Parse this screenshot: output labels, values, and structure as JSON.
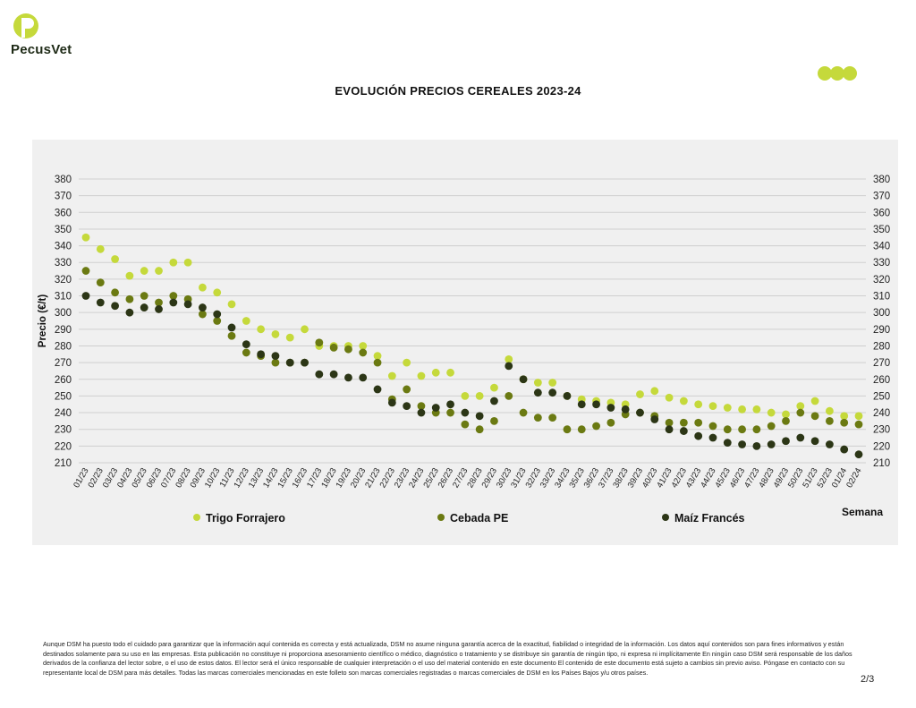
{
  "brand": {
    "name": "PecusVet",
    "accent": "#c5d93b",
    "dark": "#2c3616"
  },
  "title": "EVOLUCIÓN PRECIOS CEREALES 2023-24",
  "footer": {
    "disclaimer": "Aunque DSM ha puesto todo el cuidado para garantizar que la información aquí contenida es correcta y está actualizada, DSM no asume ninguna garantía acerca de la exactitud, fiabilidad o integridad de la información. Los datos aquí contenidos son para fines informativos y están destinados solamente para su uso en las empresas. Esta publicación no constituye ni proporciona asesoramiento científico o médico, diagnóstico o tratamiento y se distribuye sin garantía de ningún tipo, ni expresa ni implícitamente En ningún caso DSM será responsable de los daños derivados de la confianza del lector sobre, o el uso de estos datos. El lector será el único responsable de cualquier interpretación o el uso del material contenido en este documento El contenido de este documento está sujeto a cambios sin previo aviso. Póngase en contacto con su representante local de DSM para más detalles. Todas las marcas comerciales mencionadas en este folleto son marcas comerciales registradas o marcas comerciales de DSM en los Países Bajos y/u otros países.",
    "page": "2/3"
  },
  "chart_data": {
    "type": "scatter",
    "title": "EVOLUCIÓN PRECIOS CEREALES 2023-24",
    "xlabel": "Semana",
    "ylabel": "Precio (€/t)",
    "ylim": [
      210,
      380
    ],
    "ytick_step": 10,
    "grid": true,
    "legend": "bottom",
    "categories": [
      "01/23",
      "02/23",
      "03/23",
      "04/23",
      "05/23",
      "06/23",
      "07/23",
      "08/23",
      "09/23",
      "10/23",
      "11/23",
      "12/23",
      "13/23",
      "14/23",
      "15/23",
      "16/23",
      "17/23",
      "18/23",
      "19/23",
      "20/23",
      "21/23",
      "22/23",
      "23/23",
      "24/23",
      "25/23",
      "26/23",
      "27/23",
      "28/23",
      "29/23",
      "30/23",
      "31/23",
      "32/23",
      "33/23",
      "34/23",
      "35/23",
      "36/23",
      "37/23",
      "38/23",
      "39/23",
      "40/23",
      "41/23",
      "42/23",
      "43/23",
      "44/23",
      "45/23",
      "46/23",
      "47/23",
      "48/23",
      "49/23",
      "50/23",
      "51/23",
      "52/23",
      "01/24",
      "02/24"
    ],
    "series": [
      {
        "name": "Trigo Forrajero",
        "color": "#c5d93b",
        "values": [
          345,
          338,
          332,
          322,
          325,
          325,
          330,
          330,
          315,
          312,
          305,
          295,
          290,
          287,
          285,
          290,
          280,
          280,
          280,
          280,
          274,
          262,
          270,
          262,
          264,
          264,
          250,
          250,
          255,
          272,
          260,
          258,
          258,
          250,
          248,
          247,
          246,
          245,
          251,
          253,
          249,
          247,
          245,
          244,
          243,
          242,
          242,
          240,
          239,
          244,
          247,
          241,
          238,
          238
        ]
      },
      {
        "name": "Cebada PE",
        "color": "#6b7a12",
        "values": [
          325,
          318,
          312,
          308,
          310,
          306,
          310,
          308,
          299,
          295,
          286,
          276,
          274,
          270,
          270,
          270,
          282,
          279,
          278,
          276,
          270,
          248,
          254,
          244,
          240,
          240,
          233,
          230,
          235,
          250,
          240,
          237,
          237,
          230,
          230,
          232,
          234,
          239,
          240,
          238,
          234,
          234,
          234,
          232,
          230,
          230,
          230,
          232,
          235,
          240,
          238,
          235,
          234,
          233
        ]
      },
      {
        "name": "Maíz Francés",
        "color": "#2c3616",
        "values": [
          310,
          306,
          304,
          300,
          303,
          302,
          306,
          305,
          303,
          299,
          291,
          281,
          275,
          274,
          270,
          270,
          263,
          263,
          261,
          261,
          254,
          246,
          244,
          240,
          243,
          245,
          240,
          238,
          247,
          268,
          260,
          252,
          252,
          250,
          245,
          245,
          243,
          242,
          240,
          236,
          230,
          229,
          226,
          225,
          222,
          221,
          220,
          221,
          223,
          225,
          223,
          221,
          218,
          215
        ]
      }
    ]
  }
}
